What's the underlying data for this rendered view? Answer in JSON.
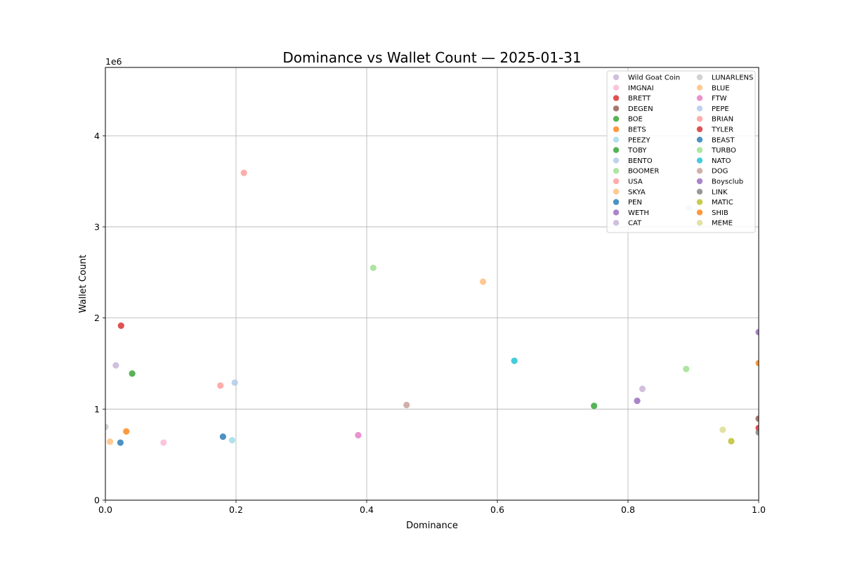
{
  "chart_data": {
    "type": "scatter",
    "title": "Dominance vs Wallet Count — 2025-01-31",
    "xlabel": "Dominance",
    "ylabel": "Wallet Count",
    "y_offset_label": "1e6",
    "xlim": [
      0.0,
      1.0
    ],
    "ylim": [
      0,
      4750000
    ],
    "x_ticks": [
      0.0,
      0.2,
      0.4,
      0.6,
      0.8,
      1.0
    ],
    "x_tick_labels": [
      "0.0",
      "0.2",
      "0.4",
      "0.6",
      "0.8",
      "1.0"
    ],
    "y_ticks": [
      0,
      1000000,
      2000000,
      3000000,
      4000000
    ],
    "y_tick_labels": [
      "0",
      "1",
      "2",
      "3",
      "4"
    ],
    "grid": true,
    "legend_position": "top-right",
    "series": [
      {
        "name": "Wild Goat Coin",
        "color": "#c5b0d5",
        "points": [
          [
            0.016,
            1480000
          ]
        ]
      },
      {
        "name": "IMGNAI",
        "color": "#f7b6d2",
        "points": [
          [
            0.089,
            632000
          ]
        ]
      },
      {
        "name": "BRETT",
        "color": "#d62728",
        "points": [
          [
            1.0,
            792000
          ]
        ]
      },
      {
        "name": "DEGEN",
        "color": "#8c564b",
        "points": [
          [
            1.0,
            895000
          ]
        ]
      },
      {
        "name": "BOE",
        "color": "#2ca02c",
        "points": [
          [
            0.748,
            1035000
          ]
        ]
      },
      {
        "name": "BETS",
        "color": "#ff7f0e",
        "points": [
          [
            0.032,
            755000
          ]
        ]
      },
      {
        "name": "PEEZY",
        "color": "#9edae5",
        "points": [
          [
            0.194,
            658000
          ]
        ]
      },
      {
        "name": "TOBY",
        "color": "#2ca02c",
        "points": [
          [
            0.041,
            1390000
          ]
        ]
      },
      {
        "name": "BENTO",
        "color": "#aec7e8",
        "points": [
          [
            0.198,
            1290000
          ]
        ]
      },
      {
        "name": "BOOMER",
        "color": "#98df8a",
        "points": [
          [
            0.889,
            1440000
          ]
        ]
      },
      {
        "name": "USA",
        "color": "#ff9896",
        "points": [
          [
            0.176,
            1258000
          ]
        ]
      },
      {
        "name": "SKYA",
        "color": "#ffbb78",
        "points": [
          [
            0.007,
            642000
          ]
        ]
      },
      {
        "name": "PEN",
        "color": "#1f77b4",
        "points": [
          [
            0.023,
            632000
          ]
        ]
      },
      {
        "name": "WETH",
        "color": "#9467bd",
        "points": [
          [
            0.814,
            1090000
          ]
        ]
      },
      {
        "name": "CAT",
        "color": "#c5b0d5",
        "points": [
          [
            0.822,
            1222000
          ]
        ]
      },
      {
        "name": "LUNARLENS",
        "color": "#c7c7c7",
        "points": [
          [
            0.0,
            805000
          ]
        ]
      },
      {
        "name": "BLUE",
        "color": "#ffbb78",
        "points": [
          [
            0.578,
            2398000
          ]
        ]
      },
      {
        "name": "FTW",
        "color": "#e377c2",
        "points": [
          [
            0.387,
            713000
          ]
        ]
      },
      {
        "name": "PEPE",
        "color": "#aec7e8",
        "points": [
          [
            0.893,
            3208000
          ]
        ]
      },
      {
        "name": "BRIAN",
        "color": "#ff9896",
        "points": [
          [
            0.212,
            3593000
          ]
        ]
      },
      {
        "name": "TYLER",
        "color": "#d62728",
        "points": [
          [
            0.024,
            1915000
          ]
        ]
      },
      {
        "name": "BEAST",
        "color": "#1f77b4",
        "points": [
          [
            0.18,
            697000
          ]
        ]
      },
      {
        "name": "TURBO",
        "color": "#98df8a",
        "points": [
          [
            0.41,
            2550000
          ]
        ]
      },
      {
        "name": "NATO",
        "color": "#17becf",
        "points": [
          [
            0.626,
            1530000
          ]
        ]
      },
      {
        "name": "DOG",
        "color": "#c49c94",
        "points": [
          [
            0.461,
            1045000
          ]
        ]
      },
      {
        "name": "Boysclub",
        "color": "#9467bd",
        "points": [
          [
            1.0,
            1845000
          ]
        ]
      },
      {
        "name": "LINK",
        "color": "#7f7f7f",
        "points": [
          [
            1.0,
            745000
          ]
        ]
      },
      {
        "name": "MATIC",
        "color": "#bcbd22",
        "points": [
          [
            0.958,
            648000
          ]
        ]
      },
      {
        "name": "SHIB",
        "color": "#ff7f0e",
        "points": [
          [
            1.0,
            1505000
          ]
        ]
      },
      {
        "name": "MEME",
        "color": "#dbdb8d",
        "points": [
          [
            0.945,
            773000
          ]
        ]
      }
    ]
  }
}
